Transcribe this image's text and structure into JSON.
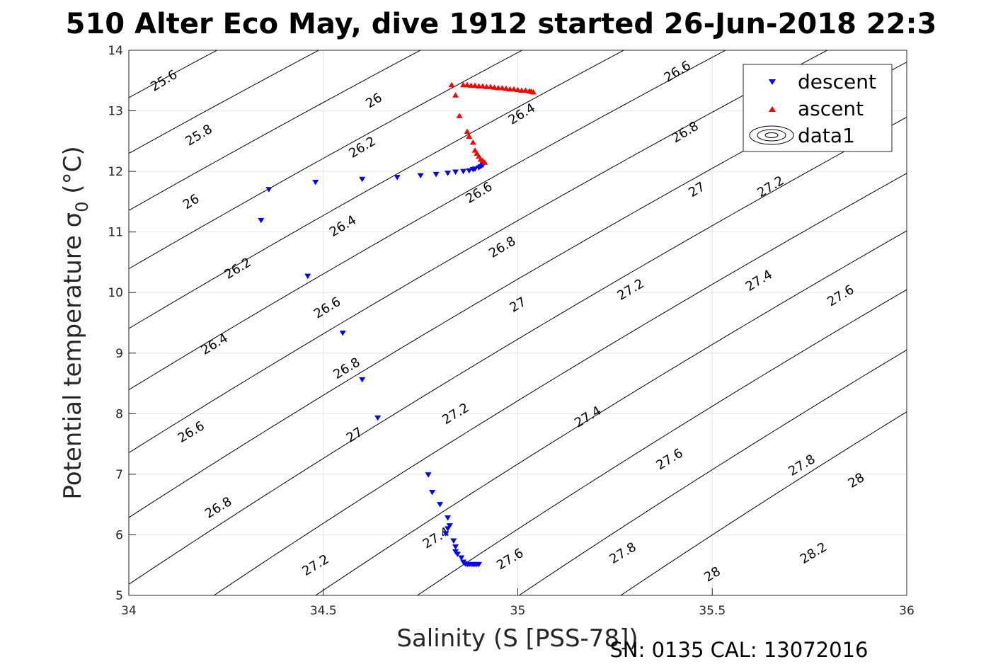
{
  "chart_data": {
    "type": "scatter",
    "title": "510 Alter Eco May, dive 1912 started 26-Jun-2018 22:3",
    "xlabel": "Salinity (S [PSS-78])",
    "ylabel_main": "Potential temperature σ",
    "ylabel_sub": "0",
    "ylabel_unit": "(°C)",
    "xlim": [
      34,
      36
    ],
    "ylim": [
      5,
      14
    ],
    "xticks": [
      34,
      34.5,
      35,
      35.5,
      36
    ],
    "xtick_labels": [
      "34",
      "34.5",
      "35",
      "35.5",
      "36"
    ],
    "yticks": [
      5,
      6,
      7,
      8,
      9,
      10,
      11,
      12,
      13,
      14
    ],
    "ytick_labels": [
      "5",
      "6",
      "7",
      "8",
      "9",
      "10",
      "11",
      "12",
      "13",
      "14"
    ],
    "grid": true,
    "legend_position": "top-right",
    "series": [
      {
        "name": "descent",
        "marker": "triangle-down",
        "color": "#0000ff",
        "points": [
          [
            34.34,
            11.19
          ],
          [
            34.36,
            11.7
          ],
          [
            34.48,
            11.82
          ],
          [
            34.6,
            11.87
          ],
          [
            34.69,
            11.9
          ],
          [
            34.75,
            11.93
          ],
          [
            34.79,
            11.95
          ],
          [
            34.82,
            11.97
          ],
          [
            34.84,
            11.99
          ],
          [
            34.86,
            12.0
          ],
          [
            34.875,
            12.01
          ],
          [
            34.885,
            12.03
          ],
          [
            34.89,
            12.04
          ],
          [
            34.9,
            12.06
          ],
          [
            34.905,
            12.08
          ],
          [
            34.91,
            12.1
          ],
          [
            34.46,
            10.27
          ],
          [
            34.55,
            9.33
          ],
          [
            34.6,
            8.56
          ],
          [
            34.64,
            7.93
          ],
          [
            34.77,
            6.99
          ],
          [
            34.78,
            6.7
          ],
          [
            34.8,
            6.5
          ],
          [
            34.82,
            6.28
          ],
          [
            34.825,
            6.15
          ],
          [
            34.82,
            6.1
          ],
          [
            34.815,
            6.02
          ],
          [
            34.835,
            5.9
          ],
          [
            34.84,
            5.8
          ],
          [
            34.84,
            5.72
          ],
          [
            34.845,
            5.68
          ],
          [
            34.855,
            5.62
          ],
          [
            34.86,
            5.55
          ],
          [
            34.865,
            5.52
          ],
          [
            34.87,
            5.51
          ],
          [
            34.875,
            5.51
          ],
          [
            34.88,
            5.51
          ],
          [
            34.885,
            5.51
          ],
          [
            34.89,
            5.51
          ],
          [
            34.895,
            5.51
          ],
          [
            34.9,
            5.51
          ]
        ]
      },
      {
        "name": "ascent",
        "marker": "triangle-up",
        "color": "#ff0000",
        "points": [
          [
            34.83,
            13.43
          ],
          [
            34.84,
            13.26
          ],
          [
            34.85,
            12.92
          ],
          [
            34.87,
            12.66
          ],
          [
            34.875,
            12.58
          ],
          [
            34.885,
            12.48
          ],
          [
            34.89,
            12.35
          ],
          [
            34.895,
            12.3
          ],
          [
            34.9,
            12.25
          ],
          [
            34.905,
            12.2
          ],
          [
            34.91,
            12.18
          ],
          [
            34.915,
            12.15
          ],
          [
            34.86,
            13.43
          ],
          [
            34.87,
            13.43
          ],
          [
            34.88,
            13.42
          ],
          [
            34.89,
            13.42
          ],
          [
            34.9,
            13.41
          ],
          [
            34.91,
            13.41
          ],
          [
            34.92,
            13.4
          ],
          [
            34.93,
            13.4
          ],
          [
            34.94,
            13.39
          ],
          [
            34.95,
            13.38
          ],
          [
            34.96,
            13.38
          ],
          [
            34.97,
            13.37
          ],
          [
            34.98,
            13.36
          ],
          [
            34.99,
            13.36
          ],
          [
            35.0,
            13.35
          ],
          [
            35.01,
            13.34
          ],
          [
            35.02,
            13.34
          ],
          [
            35.03,
            13.33
          ],
          [
            35.035,
            13.32
          ],
          [
            35.04,
            13.31
          ]
        ]
      }
    ],
    "contour_series_name": "data1",
    "contour_levels": [
      25.6,
      25.8,
      26,
      26.2,
      26.4,
      26.6,
      26.8,
      27,
      27.2,
      27.4,
      27.6,
      27.8,
      28,
      28.2
    ],
    "contour_labels": [
      {
        "text": "25.6",
        "s": 34.09,
        "t": 13.5,
        "angle": -31
      },
      {
        "text": "25.8",
        "s": 34.18,
        "t": 12.6,
        "angle": -31
      },
      {
        "text": "26",
        "s": 34.16,
        "t": 11.5,
        "angle": -31
      },
      {
        "text": "26.2",
        "s": 34.28,
        "t": 10.4,
        "angle": -31
      },
      {
        "text": "26.4",
        "s": 34.22,
        "t": 9.15,
        "angle": -31
      },
      {
        "text": "26.6",
        "s": 34.16,
        "t": 7.7,
        "angle": -31
      },
      {
        "text": "26.8",
        "s": 34.23,
        "t": 6.45,
        "angle": -31
      },
      {
        "text": "27.2",
        "s": 34.48,
        "t": 5.5,
        "angle": -31
      },
      {
        "text": "26",
        "s": 34.63,
        "t": 13.17,
        "angle": -31
      },
      {
        "text": "26.2",
        "s": 34.6,
        "t": 12.4,
        "angle": -31
      },
      {
        "text": "26.4",
        "s": 34.55,
        "t": 11.1,
        "angle": -31
      },
      {
        "text": "26.6",
        "s": 34.51,
        "t": 9.75,
        "angle": -31
      },
      {
        "text": "26.8",
        "s": 34.56,
        "t": 8.75,
        "angle": -31
      },
      {
        "text": "27",
        "s": 34.58,
        "t": 7.65,
        "angle": -31
      },
      {
        "text": "27.4",
        "s": 34.79,
        "t": 5.95,
        "angle": -31
      },
      {
        "text": "26.4",
        "s": 35.01,
        "t": 12.95,
        "angle": -31
      },
      {
        "text": "26.6",
        "s": 34.9,
        "t": 11.65,
        "angle": -31
      },
      {
        "text": "26.8",
        "s": 34.96,
        "t": 10.75,
        "angle": -31
      },
      {
        "text": "27",
        "s": 35.0,
        "t": 9.8,
        "angle": -31
      },
      {
        "text": "27.2",
        "s": 34.84,
        "t": 8.0,
        "angle": -31
      },
      {
        "text": "27.6",
        "s": 34.98,
        "t": 5.6,
        "angle": -31
      },
      {
        "text": "26.6",
        "s": 35.41,
        "t": 13.65,
        "angle": -31
      },
      {
        "text": "26.8",
        "s": 35.43,
        "t": 12.65,
        "angle": -31
      },
      {
        "text": "27",
        "s": 35.46,
        "t": 11.7,
        "angle": -31
      },
      {
        "text": "27.2",
        "s": 35.65,
        "t": 11.75,
        "angle": -31
      },
      {
        "text": "27.2",
        "s": 35.29,
        "t": 10.05,
        "angle": -31
      },
      {
        "text": "27.4",
        "s": 35.62,
        "t": 10.2,
        "angle": -31
      },
      {
        "text": "27.6",
        "s": 35.83,
        "t": 9.95,
        "angle": -31
      },
      {
        "text": "27.4",
        "s": 35.18,
        "t": 7.95,
        "angle": -31
      },
      {
        "text": "27.6",
        "s": 35.39,
        "t": 7.25,
        "angle": -31
      },
      {
        "text": "27.8",
        "s": 35.73,
        "t": 7.15,
        "angle": -31
      },
      {
        "text": "28",
        "s": 35.87,
        "t": 6.9,
        "angle": -31
      },
      {
        "text": "27.8",
        "s": 35.27,
        "t": 5.7,
        "angle": -31
      },
      {
        "text": "28",
        "s": 35.5,
        "t": 5.35,
        "angle": -31
      },
      {
        "text": "28.2",
        "s": 35.76,
        "t": 5.7,
        "angle": -31
      }
    ]
  },
  "footer": "SN: 0135  CAL: 13072016"
}
